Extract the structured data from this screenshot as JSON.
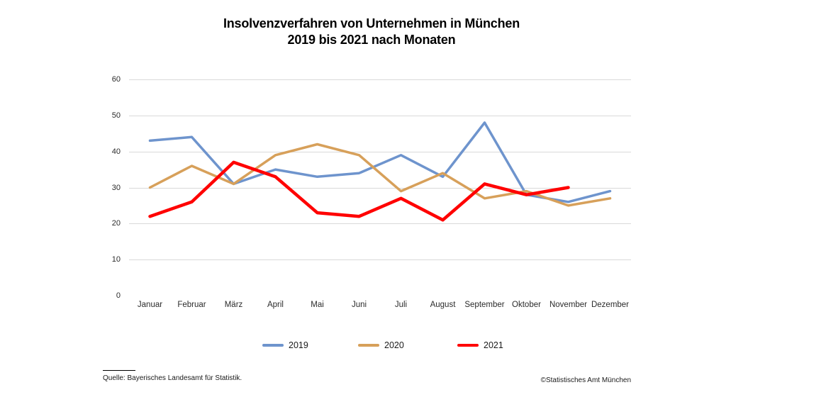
{
  "title": {
    "line1": "Insolvenzverfahren von Unternehmen in München",
    "line2": "2019 bis 2021 nach Monaten"
  },
  "chart_data": {
    "type": "line",
    "categories": [
      "Januar",
      "Februar",
      "März",
      "April",
      "Mai",
      "Juni",
      "Juli",
      "August",
      "September",
      "Oktober",
      "November",
      "Dezember"
    ],
    "series": [
      {
        "name": "2019",
        "color": "#6E94CD",
        "values": [
          43,
          44,
          31,
          35,
          33,
          34,
          39,
          33,
          48,
          28,
          26,
          29
        ]
      },
      {
        "name": "2020",
        "color": "#D7A05A",
        "values": [
          30,
          36,
          31,
          39,
          42,
          39,
          29,
          34,
          27,
          29,
          25,
          27
        ]
      },
      {
        "name": "2021",
        "color": "#FF0000",
        "values": [
          22,
          26,
          37,
          33,
          23,
          22,
          27,
          21,
          31,
          28,
          30,
          null
        ]
      }
    ],
    "ylim": [
      0,
      60
    ],
    "y_ticks": [
      0,
      10,
      20,
      30,
      40,
      50,
      60
    ],
    "grid": true,
    "gridline_color": "#d9d9d9",
    "legend_position": "bottom"
  },
  "source": {
    "text": "Quelle: Bayerisches Landesamt für Statistik."
  },
  "copyright": "©Statistisches Amt München"
}
